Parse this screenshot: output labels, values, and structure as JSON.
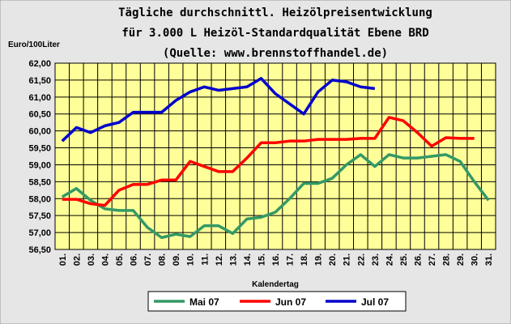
{
  "chart_data": {
    "type": "line",
    "title": [
      "Tägliche durchschnittl. Heizölpreisentwicklung",
      "für 3.000 L Heizöl-Standardqualität Ebene BRD",
      "(Quelle: www.brennstoffhandel.de)"
    ],
    "y_label": "Euro/100Liter",
    "x_label": "Kalendertag",
    "categories": [
      "01.",
      "02.",
      "03.",
      "04.",
      "05.",
      "06.",
      "07.",
      "08.",
      "09.",
      "10.",
      "11.",
      "12.",
      "13.",
      "14.",
      "15.",
      "16.",
      "17.",
      "18.",
      "19.",
      "20.",
      "21.",
      "22.",
      "23.",
      "24.",
      "25.",
      "26.",
      "27.",
      "28.",
      "29.",
      "30.",
      "31."
    ],
    "series": [
      {
        "name": "Mai 07",
        "color": "#339966",
        "values": [
          58.05,
          58.3,
          57.95,
          57.7,
          57.65,
          57.65,
          57.15,
          56.85,
          56.95,
          56.88,
          57.2,
          57.2,
          56.97,
          57.4,
          57.45,
          57.6,
          58.0,
          58.45,
          58.45,
          58.6,
          59.0,
          59.3,
          58.95,
          59.3,
          59.2,
          59.2,
          59.25,
          59.3,
          59.1,
          58.5,
          57.95
        ]
      },
      {
        "name": "Jun 07",
        "color": "#ff0000",
        "values": [
          57.98,
          57.98,
          57.85,
          57.8,
          58.25,
          58.42,
          58.42,
          58.55,
          58.55,
          59.1,
          58.95,
          58.8,
          58.8,
          59.2,
          59.65,
          59.65,
          59.7,
          59.7,
          59.75,
          59.75,
          59.75,
          59.78,
          59.78,
          60.4,
          60.3,
          59.95,
          59.55,
          59.8,
          59.78,
          59.78,
          null
        ]
      },
      {
        "name": "Jul 07",
        "color": "#0000cc",
        "values": [
          59.7,
          60.1,
          59.95,
          60.15,
          60.25,
          60.55,
          60.55,
          60.55,
          60.9,
          61.15,
          61.3,
          61.2,
          61.25,
          61.3,
          61.55,
          61.1,
          60.8,
          60.5,
          61.15,
          61.5,
          61.45,
          61.3,
          61.25,
          null,
          null,
          null,
          null,
          null,
          null,
          null,
          null
        ]
      }
    ],
    "ylim": [
      56.5,
      62
    ],
    "yticks": [
      {
        "value": 56.5,
        "label": "56,50"
      },
      {
        "value": 57,
        "label": "57,00"
      },
      {
        "value": 57.5,
        "label": "57,50"
      },
      {
        "value": 58,
        "label": "58,00"
      },
      {
        "value": 58.5,
        "label": "58,50"
      },
      {
        "value": 59,
        "label": "59,00"
      },
      {
        "value": 59.5,
        "label": "59,50"
      },
      {
        "value": 60,
        "label": "60,00"
      },
      {
        "value": 60.5,
        "label": "60,50"
      },
      {
        "value": 61,
        "label": "61,00"
      },
      {
        "value": 61.5,
        "label": "61,50"
      },
      {
        "value": 62,
        "label": "62,00"
      }
    ],
    "grid": true,
    "plot_background": "#ffff99"
  }
}
